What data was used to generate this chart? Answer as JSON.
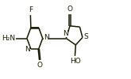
{
  "bg_color": "#ffffff",
  "bond_color": "#1a1a00",
  "font_size": 6.5,
  "line_width": 1.1,
  "xlim": [
    0.0,
    1.65
  ],
  "ylim": [
    0.0,
    1.0
  ]
}
